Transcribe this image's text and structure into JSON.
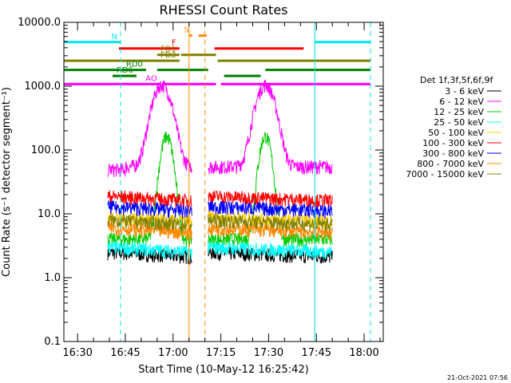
{
  "chart_data": {
    "type": "line",
    "title": "RHESSI Count Rates",
    "xlabel": "Start Time (10-May-12 16:25:42)",
    "ylabel": "Count Rate (s⁻¹ detector segment⁻¹)",
    "yscale": "log",
    "ylim": [
      0.1,
      10000
    ],
    "xlim": [
      "16:25:42",
      "18:06:00"
    ],
    "y_ticks": [
      "0.1",
      "1.0",
      "10.0",
      "100.0",
      "1000.0",
      "10000.0"
    ],
    "x_ticks": [
      "16:30",
      "16:45",
      "17:00",
      "17:15",
      "17:30",
      "17:45",
      "18:00"
    ],
    "legend_title": "Det 1f,3f,5f,6f,9f",
    "timestamp": "21-Oct-2021 07:56",
    "series": [
      {
        "name": "3 - 6 keV",
        "color": "#000000",
        "base": 2.5
      },
      {
        "name": "6 - 12 keV",
        "color": "#ff00ff",
        "base": 55
      },
      {
        "name": "12 - 25 keV",
        "color": "#00cc00",
        "base": 4.0
      },
      {
        "name": "25 - 50 keV",
        "color": "#00ffff",
        "base": 3.0
      },
      {
        "name": "50 - 100 keV",
        "color": "#ffcc00",
        "base": 9.0
      },
      {
        "name": "100 - 300 keV",
        "color": "#ff0000",
        "base": 19
      },
      {
        "name": "300 - 800 keV",
        "color": "#0000ff",
        "base": 13
      },
      {
        "name": "800 - 7000 keV",
        "color": "#ff8800",
        "base": 6.0
      },
      {
        "name": "7000 - 15000 keV",
        "color": "#808000",
        "base": 8.0
      }
    ],
    "data_gaps": [
      [
        "16:25:42",
        "16:39:30"
      ],
      [
        "17:06:00",
        "17:11:00"
      ],
      [
        "17:50:00",
        "18:06:00"
      ]
    ],
    "flag_bars": [
      {
        "label": "N",
        "color": "#00e5ee",
        "level": 4900,
        "segments": [
          [
            "16:25:42",
            "16:43:30"
          ],
          [
            "17:44:30",
            "18:02:00"
          ]
        ]
      },
      {
        "label": "S",
        "color": "#ff8800",
        "level": 6200,
        "segments": [
          [
            "17:05:00",
            "17:06:00"
          ],
          [
            "17:08:00",
            "17:10:30"
          ]
        ]
      },
      {
        "label": "F",
        "color": "#ff0000",
        "level": 3900,
        "segments": [
          [
            "16:43:00",
            "17:02:00"
          ],
          [
            "17:13:00",
            "17:41:00"
          ]
        ]
      },
      {
        "label": "FD1",
        "color": "#808000",
        "level": 3100,
        "segments": [
          [
            "16:55:00",
            "17:02:00"
          ],
          [
            "17:02:30",
            "17:13:30"
          ]
        ]
      },
      {
        "label": "FD2",
        "color": "#808000",
        "level": 2500,
        "segments": [
          [
            "16:25:42",
            "17:02:00"
          ],
          [
            "17:14:00",
            "18:02:00"
          ]
        ]
      },
      {
        "label": "RD0",
        "color": "#008000",
        "level": 1800,
        "segments": [
          [
            "16:25:42",
            "16:51:30"
          ],
          [
            "16:55:00",
            "17:11:00"
          ],
          [
            "17:29:00",
            "18:02:00"
          ]
        ]
      },
      {
        "label": "RD6",
        "color": "#008000",
        "level": 1450,
        "segments": [
          [
            "16:41:00",
            "16:48:30"
          ],
          [
            "17:16:00",
            "17:27:30"
          ]
        ]
      },
      {
        "label": "AO",
        "color": "#ff00ff",
        "level": 1080,
        "segments": [
          [
            "16:25:42",
            "16:56:00"
          ],
          [
            "16:56:30",
            "17:13:30"
          ],
          [
            "17:15:00",
            "18:02:00"
          ]
        ]
      }
    ],
    "vertical_markers": [
      {
        "time": "16:25:42",
        "color": "#00e5ee",
        "style": "solid"
      },
      {
        "time": "16:43:30",
        "color": "#00e5ee",
        "style": "dashed"
      },
      {
        "time": "17:05:00",
        "color": "#ff8800",
        "style": "solid"
      },
      {
        "time": "17:10:00",
        "color": "#ff8800",
        "style": "dashed"
      },
      {
        "time": "17:44:30",
        "color": "#00e5ee",
        "style": "solid"
      },
      {
        "time": "18:02:00",
        "color": "#00e5ee",
        "style": "dashed"
      }
    ]
  }
}
